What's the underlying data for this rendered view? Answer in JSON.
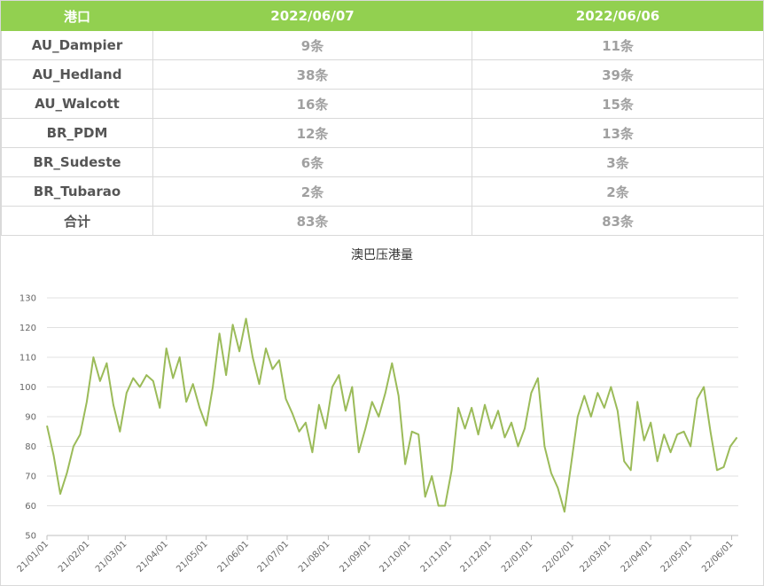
{
  "table": {
    "header": [
      "港口",
      "2022/06/07",
      "2022/06/06"
    ],
    "rows": [
      [
        "AU_Dampier",
        "9条",
        "11条"
      ],
      [
        "AU_Hedland",
        "38条",
        "39条"
      ],
      [
        "AU_Walcott",
        "16条",
        "15条"
      ],
      [
        "BR_PDM",
        "12条",
        "13条"
      ],
      [
        "BR_Sudeste",
        "6条",
        "3条"
      ],
      [
        "BR_Tubarao",
        "2条",
        "2条"
      ],
      [
        "合计",
        "83条",
        "83条"
      ]
    ]
  },
  "chart_data": {
    "type": "line",
    "title": "澳巴压港量",
    "x": [
      "21/01/01",
      "21/01/06",
      "21/01/11",
      "21/01/16",
      "21/01/21",
      "21/01/26",
      "21/01/31",
      "21/02/05",
      "21/02/10",
      "21/02/15",
      "21/02/20",
      "21/02/25",
      "21/03/02",
      "21/03/07",
      "21/03/12",
      "21/03/17",
      "21/03/22",
      "21/03/27",
      "21/04/01",
      "21/04/06",
      "21/04/11",
      "21/04/16",
      "21/04/21",
      "21/04/26",
      "21/05/01",
      "21/05/06",
      "21/05/11",
      "21/05/16",
      "21/05/21",
      "21/05/26",
      "21/05/31",
      "21/06/05",
      "21/06/10",
      "21/06/15",
      "21/06/20",
      "21/06/25",
      "21/06/30",
      "21/07/05",
      "21/07/10",
      "21/07/15",
      "21/07/20",
      "21/07/25",
      "21/07/30",
      "21/08/04",
      "21/08/09",
      "21/08/14",
      "21/08/19",
      "21/08/24",
      "21/08/29",
      "21/09/03",
      "21/09/08",
      "21/09/13",
      "21/09/18",
      "21/09/23",
      "21/09/28",
      "21/10/03",
      "21/10/08",
      "21/10/13",
      "21/10/18",
      "21/10/23",
      "21/10/28",
      "21/11/02",
      "21/11/07",
      "21/11/12",
      "21/11/17",
      "21/11/22",
      "21/11/27",
      "21/12/02",
      "21/12/07",
      "21/12/12",
      "21/12/17",
      "21/12/22",
      "21/12/27",
      "22/01/01",
      "22/01/06",
      "22/01/11",
      "22/01/16",
      "22/01/21",
      "22/01/26",
      "22/01/31",
      "22/02/05",
      "22/02/10",
      "22/02/15",
      "22/02/20",
      "22/02/25",
      "22/03/02",
      "22/03/07",
      "22/03/12",
      "22/03/17",
      "22/03/22",
      "22/03/27",
      "22/04/01",
      "22/04/06",
      "22/04/11",
      "22/04/16",
      "22/04/21",
      "22/04/26",
      "22/05/01",
      "22/05/06",
      "22/05/11",
      "22/05/16",
      "22/05/21",
      "22/05/26",
      "22/05/31",
      "22/06/05"
    ],
    "series": [
      {
        "name": "澳巴压港量",
        "color": "#9bbb59",
        "values": [
          87,
          77,
          64,
          71,
          80,
          84,
          95,
          110,
          102,
          108,
          94,
          85,
          98,
          103,
          100,
          104,
          102,
          93,
          113,
          103,
          110,
          95,
          101,
          93,
          87,
          100,
          118,
          104,
          121,
          112,
          123,
          110,
          101,
          113,
          106,
          109,
          96,
          91,
          85,
          88,
          78,
          94,
          86,
          100,
          104,
          92,
          100,
          78,
          86,
          95,
          90,
          98,
          108,
          97,
          74,
          85,
          84,
          63,
          70,
          60,
          60,
          72,
          93,
          86,
          93,
          84,
          94,
          86,
          92,
          83,
          88,
          80,
          86,
          98,
          103,
          80,
          71,
          66,
          58,
          74,
          90,
          97,
          90,
          98,
          93,
          100,
          92,
          75,
          72,
          95,
          82,
          88,
          75,
          84,
          78,
          84,
          85,
          80,
          96,
          100,
          85,
          72,
          73,
          80,
          83
        ]
      }
    ],
    "xlim": [
      "21/01/01",
      "22/06/06"
    ],
    "xticks": [
      "21/01/01",
      "21/02/01",
      "21/03/01",
      "21/04/01",
      "21/05/01",
      "21/06/01",
      "21/07/01",
      "21/08/01",
      "21/09/01",
      "21/10/01",
      "21/11/01",
      "21/12/01",
      "22/01/01",
      "22/02/01",
      "22/03/01",
      "22/04/01",
      "22/05/01",
      "22/06/01"
    ],
    "ylim": [
      50,
      130
    ],
    "yticks": [
      50,
      60,
      70,
      80,
      90,
      100,
      110,
      120,
      130
    ],
    "grid": true
  }
}
